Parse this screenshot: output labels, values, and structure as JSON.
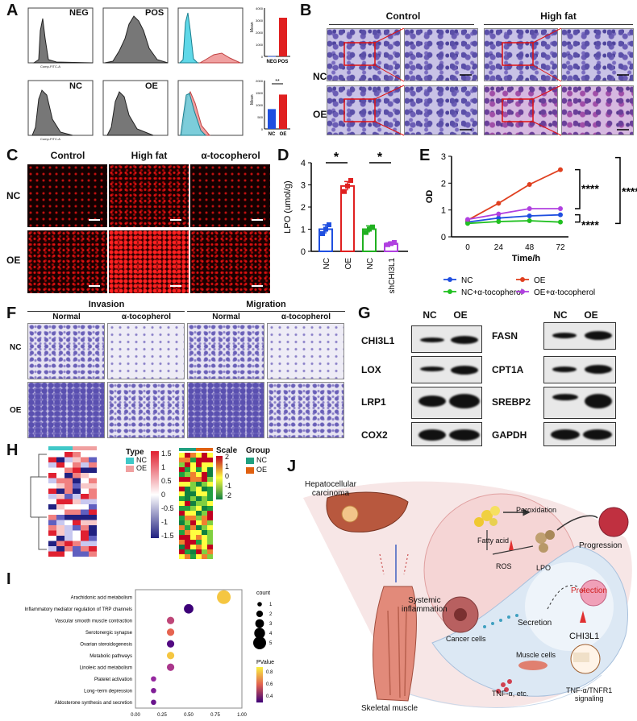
{
  "panels": {
    "A": "A",
    "B": "B",
    "C": "C",
    "D": "D",
    "E": "E",
    "F": "F",
    "G": "G",
    "H": "H",
    "I": "I",
    "J": "J"
  },
  "panelA": {
    "tags": [
      "NEG",
      "POS",
      "NC",
      "OE"
    ],
    "axis_x": "Comp-FITC-A",
    "axis_y": "Count",
    "bar_top": {
      "ylabel": "Mean",
      "categories": [
        "NEG",
        "POS"
      ],
      "values": [
        20,
        3200
      ],
      "ticks": [
        "0",
        "1000",
        "2000",
        "3000",
        "4000"
      ],
      "colors": [
        "#1f4fe0",
        "#e02020"
      ]
    },
    "bar_bottom": {
      "ylabel": "Mean",
      "categories": [
        "NC",
        "OE"
      ],
      "values": [
        820,
        1420
      ],
      "ticks": [
        "0",
        "500",
        "1000",
        "1500",
        "2000"
      ],
      "sig": "**",
      "colors": [
        "#1f4fe0",
        "#e02020"
      ]
    }
  },
  "panelB": {
    "col1": "Control",
    "col2": "High fat",
    "rows": [
      "NC",
      "OE"
    ]
  },
  "panelC": {
    "cols": [
      "Control",
      "High fat",
      "α-tocopherol"
    ],
    "rows": [
      "NC",
      "OE"
    ]
  },
  "chart_data": [
    {
      "type": "bar",
      "title": "",
      "ylabel": "LPO (umol/g)",
      "categories": [
        "NC",
        "OE",
        "NC",
        "shCHI3L1"
      ],
      "values": [
        1.0,
        2.95,
        1.0,
        0.35
      ],
      "errors": [
        0.2,
        0.2,
        0.15,
        0.07
      ],
      "points": [
        [
          0.8,
          1.0,
          1.2
        ],
        [
          2.7,
          2.95,
          3.2
        ],
        [
          0.85,
          1.0,
          1.1
        ],
        [
          0.3,
          0.35,
          0.4
        ]
      ],
      "ylim": [
        0,
        4
      ],
      "yticks": [
        "0",
        "1",
        "2",
        "3",
        "4"
      ],
      "colors": [
        "#1f4fe0",
        "#e02020",
        "#20b020",
        "#b040e0"
      ],
      "sig": [
        "*",
        "*"
      ]
    },
    {
      "type": "line",
      "title": "",
      "xlabel": "Time/h",
      "ylabel": "OD",
      "x": [
        0,
        24,
        48,
        72
      ],
      "xticks": [
        "0",
        "24",
        "48",
        "72"
      ],
      "yticks": [
        "0",
        "1",
        "2",
        "3"
      ],
      "ylim": [
        0,
        3
      ],
      "series": [
        {
          "name": "NC",
          "values": [
            0.55,
            0.7,
            0.78,
            0.82
          ],
          "color": "#1f4fe0"
        },
        {
          "name": "OE",
          "values": [
            0.62,
            1.25,
            1.95,
            2.5
          ],
          "color": "#e04020"
        },
        {
          "name": "NC+α-tocopherol",
          "values": [
            0.5,
            0.57,
            0.6,
            0.55
          ],
          "color": "#20c020"
        },
        {
          "name": "OE+α-tocopherol",
          "values": [
            0.65,
            0.85,
            1.05,
            1.05
          ],
          "color": "#b040e0"
        }
      ],
      "sig": [
        "****",
        "****",
        "****"
      ]
    }
  ],
  "panelF": {
    "group1": "Invasion",
    "group2": "Migration",
    "cols": [
      "Normal",
      "α-tocopherol",
      "Normal",
      "α-tocopherol"
    ],
    "rows": [
      "NC",
      "OE"
    ]
  },
  "panelG": {
    "cols": [
      "NC",
      "OE"
    ],
    "left": [
      "CHI3L1",
      "LOX",
      "LRP1",
      "COX2"
    ],
    "right": [
      "FASN",
      "CPT1A",
      "SREBP2",
      "GAPDH"
    ]
  },
  "panelH": {
    "legend1": {
      "title": "Type",
      "items": [
        "NC",
        "OE"
      ],
      "colors": [
        "#40c8c8",
        "#f0a0a0"
      ],
      "scale": [
        "1.5",
        "1",
        "0.5",
        "0",
        "-0.5",
        "-1",
        "-1.5"
      ]
    },
    "legend2": {
      "scale_title": "Scale",
      "group_title": "Group",
      "scale": [
        "2",
        "1",
        "0",
        "-1",
        "-2"
      ],
      "items": [
        "NC",
        "OE"
      ],
      "colors": [
        "#20a080",
        "#e06010"
      ]
    }
  },
  "panelI": {
    "terms": [
      "Arachidonic acid metabolism",
      "Inflammatory mediator regulation of TRP channels",
      "Vascular smooth muscle contraction",
      "Serotonergic synapse",
      "Ovarian steroidogenesis",
      "Metabolic pathways",
      "Linoleic acid metabolism",
      "Platelet activation",
      "Long−term depression",
      "Aldosterone synthesis and secretion"
    ],
    "ratio": [
      0.83,
      0.5,
      0.33,
      0.33,
      0.33,
      0.33,
      0.33,
      0.17,
      0.17,
      0.17
    ],
    "count": [
      5,
      3,
      2,
      2,
      2,
      2,
      2,
      1,
      1,
      1
    ],
    "pvalue": [
      0.85,
      0.3,
      0.6,
      0.7,
      0.35,
      0.85,
      0.55,
      0.5,
      0.45,
      0.4
    ],
    "xlabel": "Ratio",
    "xticks": [
      "0.00",
      "0.25",
      "0.50",
      "0.75",
      "1.00"
    ],
    "count_title": "count",
    "count_items": [
      "1",
      "2",
      "3",
      "4",
      "5"
    ],
    "p_title": "PValue",
    "p_ticks": [
      "0.8",
      "0.6",
      "0.4"
    ]
  },
  "panelJ": {
    "hcc": "Hepatocellular\ncarcinoma",
    "systemic": "Systemic\ninflammation",
    "skeletal": "Skeletal muscle",
    "fatty": "Fatty acid",
    "perox": "Peroxidation",
    "progression": "Progression",
    "ros": "ROS",
    "lpo": "LPO",
    "cancer": "Cancer cells",
    "secretion": "Secretion",
    "protection": "Protection",
    "chi3l1": "CHI3L1",
    "muscle": "Muscle cells",
    "tnf": "TNF-α, etc.",
    "tnfr": "TNF-α/TNFR1\nsignaling"
  }
}
